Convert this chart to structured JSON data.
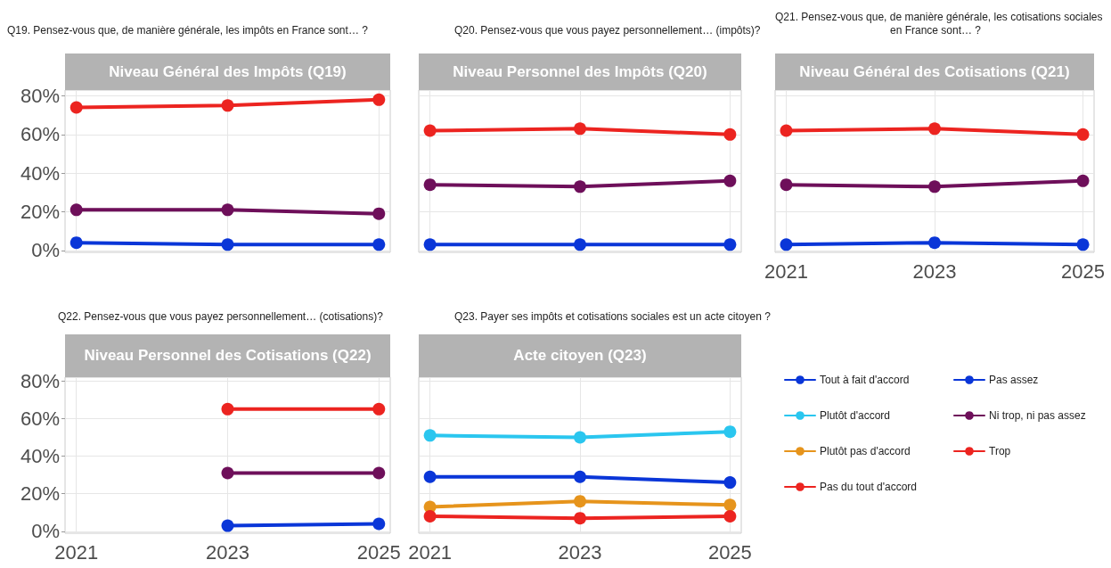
{
  "chart_data": [
    {
      "type": "line",
      "title": "Niveau Général des Impôts (Q19)",
      "subtitle": "Q19. Pensez-vous que, de manière générale, les impôts en France sont… ?",
      "x": [
        2021,
        2023,
        2025
      ],
      "xlim": [
        2020.85,
        2025.15
      ],
      "xticks": [
        2021,
        2023,
        2025
      ],
      "ylim": [
        -1,
        83
      ],
      "yticks": [
        {
          "value": 0,
          "label": "0%"
        },
        {
          "value": 20,
          "label": "20%"
        },
        {
          "value": 40,
          "label": "40%"
        },
        {
          "value": 60,
          "label": "60%"
        },
        {
          "value": 80,
          "label": "80%"
        }
      ],
      "grid": true,
      "marker": "circle",
      "tick_labels": "y",
      "series": [
        {
          "color": "#0a36d8",
          "values": [
            4,
            3,
            3
          ]
        },
        {
          "color": "#6e0f5a",
          "values": [
            21,
            21,
            19
          ]
        },
        {
          "color": "#ec2420",
          "values": [
            74,
            75,
            78
          ]
        }
      ]
    },
    {
      "type": "line",
      "title": "Niveau Personnel des Impôts (Q20)",
      "subtitle": "Q20. Pensez-vous que vous payez personnellement… (impôts)?",
      "x": [
        2021,
        2023,
        2025
      ],
      "xlim": [
        2020.85,
        2025.15
      ],
      "xticks": [
        2021,
        2023,
        2025
      ],
      "ylim": [
        -1,
        83
      ],
      "yticks": [
        {
          "value": 0,
          "label": null
        },
        {
          "value": 20,
          "label": null
        },
        {
          "value": 40,
          "label": null
        },
        {
          "value": 60,
          "label": null
        },
        {
          "value": 80,
          "label": null
        }
      ],
      "grid": true,
      "marker": "circle",
      "tick_labels": false,
      "series": [
        {
          "color": "#0a36d8",
          "values": [
            3,
            3,
            3
          ]
        },
        {
          "color": "#6e0f5a",
          "values": [
            34,
            33,
            36
          ]
        },
        {
          "color": "#ec2420",
          "values": [
            62,
            63,
            60
          ]
        }
      ]
    },
    {
      "type": "line",
      "title": "Niveau Général des Cotisations (Q21)",
      "subtitle": "Q21. Pensez-vous que, de manière générale, les cotisations sociales\nen France sont… ?",
      "x": [
        2021,
        2023,
        2025
      ],
      "xlim": [
        2020.85,
        2025.15
      ],
      "xticks": [
        2021,
        2023,
        2025
      ],
      "ylim": [
        -1,
        83
      ],
      "yticks": [
        {
          "value": 0,
          "label": null
        },
        {
          "value": 20,
          "label": null
        },
        {
          "value": 40,
          "label": null
        },
        {
          "value": 60,
          "label": null
        },
        {
          "value": 80,
          "label": null
        }
      ],
      "grid": true,
      "marker": "circle",
      "tick_labels": "x",
      "legend": "bottom",
      "series": [
        {
          "name": "Pas assez",
          "color": "#0a36d8",
          "values": [
            3,
            4,
            3
          ]
        },
        {
          "name": "Ni trop, ni pas assez",
          "color": "#6e0f5a",
          "values": [
            34,
            33,
            36
          ]
        },
        {
          "name": "Trop",
          "color": "#ec2420",
          "values": [
            62,
            63,
            60
          ]
        }
      ]
    },
    {
      "type": "line",
      "title": "Niveau Personnel des Cotisations (Q22)",
      "subtitle": "Q22. Pensez-vous que vous payez personnellement… (cotisations)?",
      "x": [
        2023,
        2025
      ],
      "xlim": [
        2020.85,
        2025.15
      ],
      "xticks": [
        2021,
        2023,
        2025
      ],
      "ylim": [
        -1,
        82
      ],
      "yticks": [
        {
          "value": 0,
          "label": "0%"
        },
        {
          "value": 20,
          "label": "20%"
        },
        {
          "value": 40,
          "label": "40%"
        },
        {
          "value": 60,
          "label": "60%"
        },
        {
          "value": 80,
          "label": "80%"
        }
      ],
      "grid": true,
      "marker": "circle",
      "series": [
        {
          "color": "#0a36d8",
          "values": [
            3,
            4
          ]
        },
        {
          "color": "#6e0f5a",
          "values": [
            31,
            31
          ]
        },
        {
          "color": "#ec2420",
          "values": [
            65,
            65
          ]
        }
      ]
    },
    {
      "type": "line",
      "title": "Acte citoyen (Q23)",
      "subtitle": "Q23. Payer ses impôts et cotisations sociales est un acte citoyen ?",
      "x": [
        2021,
        2023,
        2025
      ],
      "xlim": [
        2020.85,
        2025.15
      ],
      "xticks": [
        2021,
        2023,
        2025
      ],
      "ylim": [
        -1,
        82
      ],
      "yticks": [
        {
          "value": 0,
          "label": null
        },
        {
          "value": 20,
          "label": null
        },
        {
          "value": 40,
          "label": null
        },
        {
          "value": 60,
          "label": null
        },
        {
          "value": 80,
          "label": null
        }
      ],
      "grid": true,
      "marker": "circle",
      "tick_labels": "x",
      "legend": "right",
      "series": [
        {
          "name": "Tout à fait d'accord",
          "color": "#0a36d8",
          "values": [
            29,
            29,
            26
          ]
        },
        {
          "name": "Plutôt d'accord",
          "color": "#2ac6ef",
          "values": [
            51,
            50,
            53
          ]
        },
        {
          "name": "Plutôt pas d'accord",
          "color": "#e6941c",
          "values": [
            13,
            16,
            14
          ]
        },
        {
          "name": "Pas du tout d'accord",
          "color": "#ec2420",
          "values": [
            8,
            7,
            8
          ]
        }
      ]
    }
  ]
}
